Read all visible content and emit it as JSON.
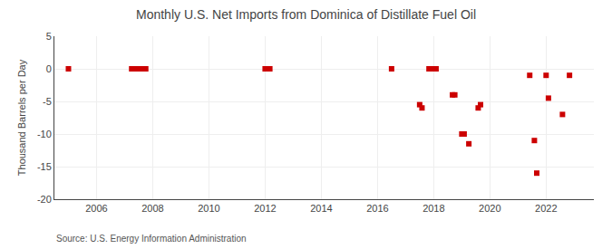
{
  "chart_data": {
    "type": "scatter",
    "title": "Monthly U.S. Net Imports from Dominica of Distillate Fuel Oil",
    "ylabel": "Thousand Barrels per Day",
    "annotations": [
      "Source: U.S. Energy Information Administration"
    ],
    "x": [
      2005.0,
      2007.25,
      2007.42,
      2007.5,
      2007.583,
      2007.667,
      2007.75,
      2012.0,
      2012.083,
      2012.167,
      2016.5,
      2017.5,
      2017.583,
      2017.833,
      2017.917,
      2018.0,
      2018.083,
      2018.667,
      2018.75,
      2019.0,
      2019.083,
      2019.25,
      2019.583,
      2019.667,
      2021.417,
      2021.583,
      2021.667,
      2022.0,
      2022.083,
      2022.583,
      2022.833
    ],
    "values": [
      0,
      0,
      0,
      0,
      0,
      0,
      0,
      0,
      0,
      0,
      0,
      -5.5,
      -6,
      0,
      0,
      0,
      0,
      -4,
      -4,
      -10,
      -10,
      -11.5,
      -6,
      -5.5,
      -1,
      -11,
      -16,
      -1,
      -4.5,
      -7,
      -1
    ],
    "color": "#cc0000",
    "marker": "square",
    "xlim": [
      2004.5,
      2023.7
    ],
    "xticks": [
      2006,
      2008,
      2010,
      2012,
      2014,
      2016,
      2018,
      2020,
      2022
    ],
    "ylim": [
      -20,
      5
    ],
    "yticks": [
      5,
      0,
      -5,
      -10,
      -15,
      -20
    ],
    "grid": true
  }
}
